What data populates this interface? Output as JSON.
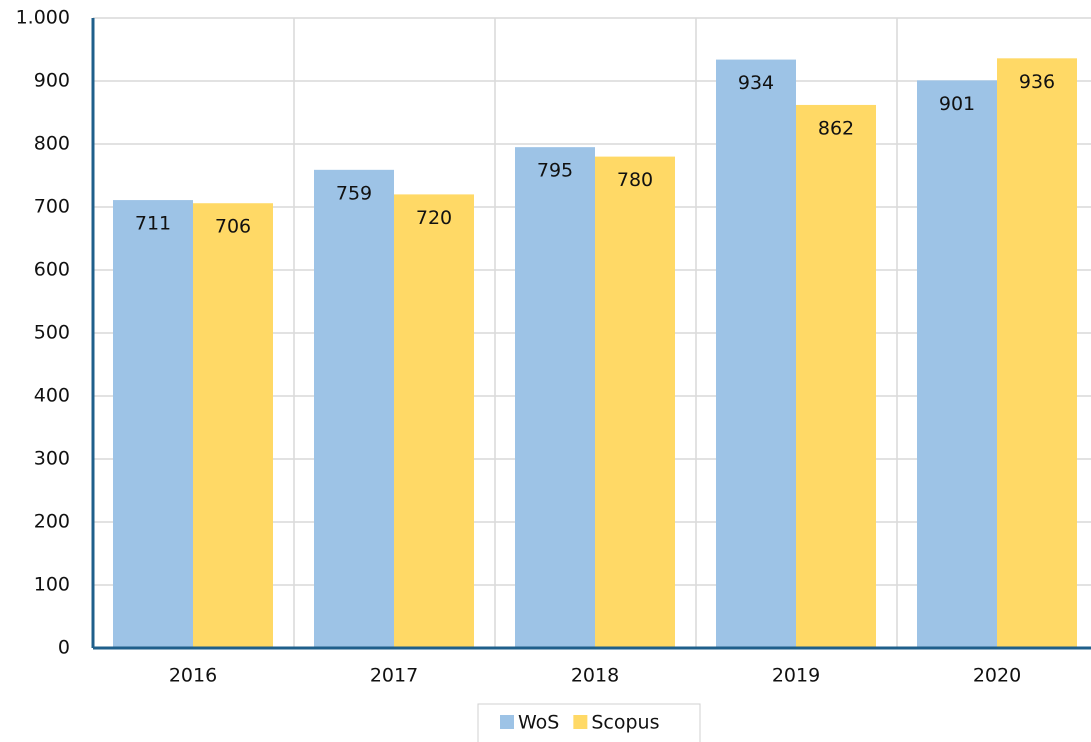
{
  "chart_data": {
    "type": "bar",
    "categories": [
      "2016",
      "2017",
      "2018",
      "2019",
      "2020"
    ],
    "series": [
      {
        "name": "WoS",
        "color": "#9dc3e6",
        "values": [
          711,
          759,
          795,
          934,
          901
        ]
      },
      {
        "name": "Scopus",
        "color": "#ffd966",
        "values": [
          706,
          720,
          780,
          862,
          936
        ]
      }
    ],
    "ylim": [
      0,
      1000
    ],
    "yticks": [
      0,
      100,
      200,
      300,
      400,
      500,
      600,
      700,
      800,
      900,
      {
        "value": 1000,
        "label": "1.000"
      }
    ],
    "grid": true,
    "legend": "bottom"
  }
}
